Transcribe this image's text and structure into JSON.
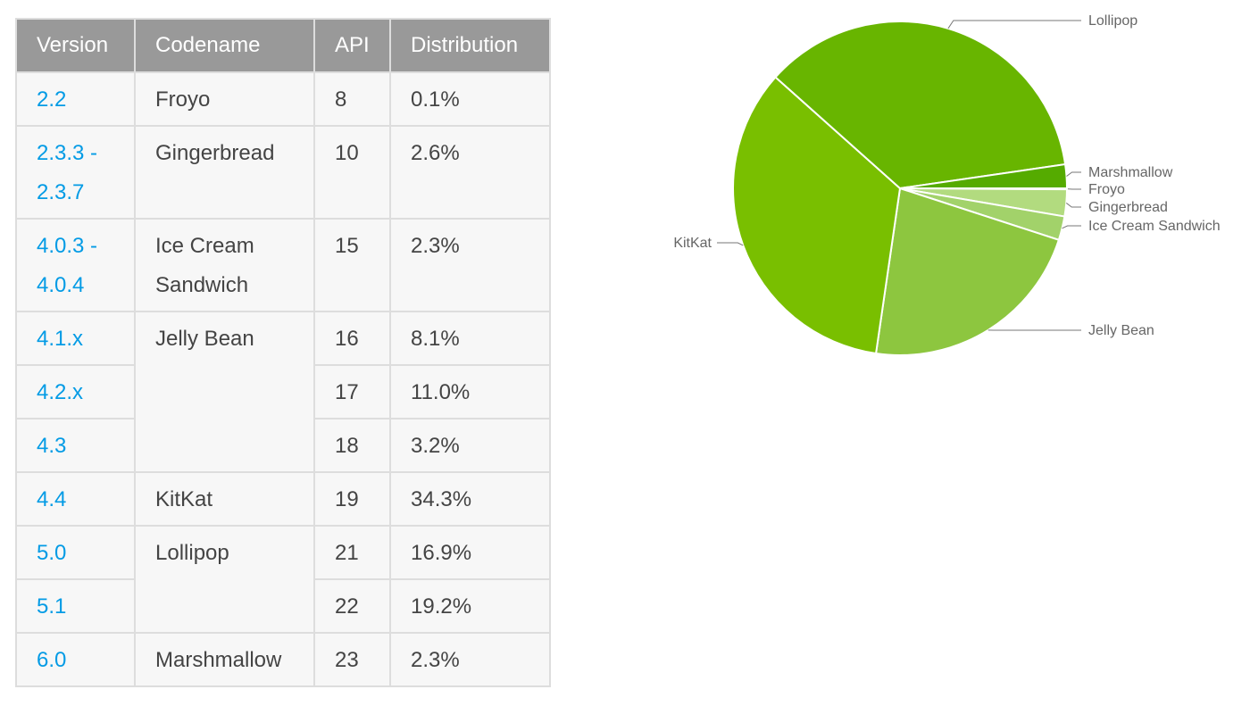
{
  "table": {
    "headers": [
      "Version",
      "Codename",
      "API",
      "Distribution"
    ],
    "rows": [
      {
        "version": "2.2",
        "codename": "Froyo",
        "span": 1,
        "api": "8",
        "distribution": "0.1%"
      },
      {
        "version": "2.3.3 -\n2.3.7",
        "codename": "Gingerbread",
        "span": 1,
        "api": "10",
        "distribution": "2.6%"
      },
      {
        "version": "4.0.3 -\n4.0.4",
        "codename": "Ice Cream\nSandwich",
        "span": 1,
        "api": "15",
        "distribution": "2.3%"
      },
      {
        "version": "4.1.x",
        "codename": "Jelly Bean",
        "span": 3,
        "api": "16",
        "distribution": "8.1%"
      },
      {
        "version": "4.2.x",
        "codename": null,
        "api": "17",
        "distribution": "11.0%"
      },
      {
        "version": "4.3",
        "codename": null,
        "api": "18",
        "distribution": "3.2%"
      },
      {
        "version": "4.4",
        "codename": "KitKat",
        "span": 1,
        "api": "19",
        "distribution": "34.3%"
      },
      {
        "version": "5.0",
        "codename": "Lollipop",
        "span": 2,
        "api": "21",
        "distribution": "16.9%"
      },
      {
        "version": "5.1",
        "codename": null,
        "api": "22",
        "distribution": "19.2%"
      },
      {
        "version": "6.0",
        "codename": "Marshmallow",
        "span": 1,
        "api": "23",
        "distribution": "2.3%"
      }
    ]
  },
  "chart_data": {
    "type": "pie",
    "categories": [
      "Froyo",
      "Gingerbread",
      "Ice Cream Sandwich",
      "Jelly Bean",
      "KitKat",
      "Lollipop",
      "Marshmallow"
    ],
    "values": [
      0.1,
      2.6,
      2.3,
      22.3,
      34.3,
      36.1,
      2.3
    ],
    "colors": [
      "#c6e6a0",
      "#b2db7f",
      "#a2d26a",
      "#8dc63f",
      "#79bf00",
      "#68b500",
      "#55ab00"
    ],
    "direction": "clockwise from east",
    "legend": "leader-line labels"
  }
}
